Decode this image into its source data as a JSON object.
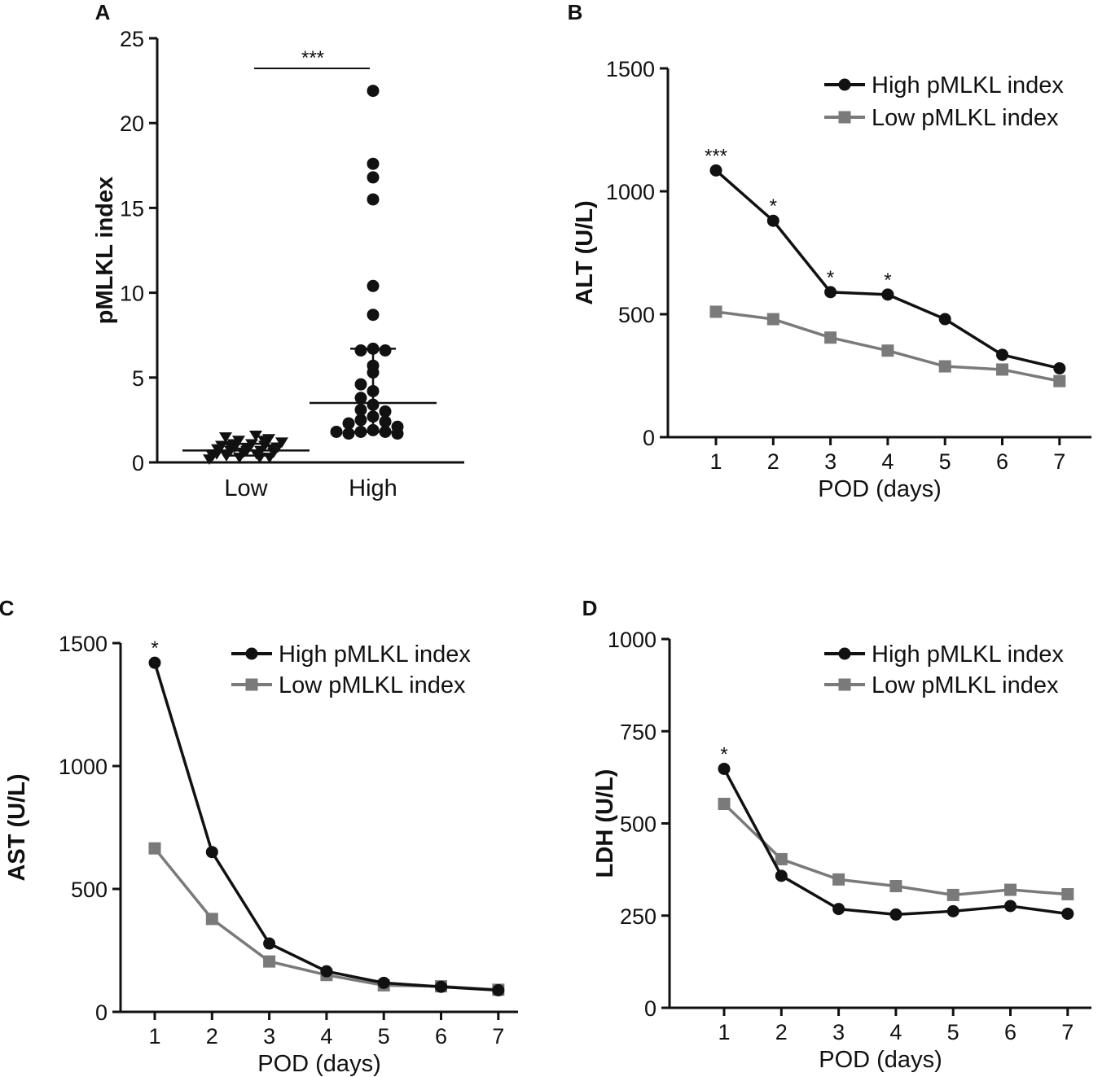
{
  "chart_data": [
    {
      "panel": "A",
      "type": "scatter",
      "ylabel": "pMLKL index",
      "xlabel": "",
      "categories": [
        "Low",
        "High"
      ],
      "ylim": [
        0,
        25
      ],
      "yticks": [
        0,
        5,
        10,
        15,
        20,
        25
      ],
      "significance": "***",
      "groups": [
        {
          "name": "Low",
          "marker": "triangle-down",
          "values": [
            0.2,
            0.3,
            0.3,
            0.4,
            0.5,
            0.5,
            0.6,
            0.6,
            0.7,
            0.7,
            0.8,
            0.8,
            0.9,
            0.9,
            1.0,
            1.0,
            1.1,
            1.2,
            1.3,
            1.4,
            1.5,
            1.6,
            0.4,
            0.6,
            0.8,
            1.0,
            0.3,
            0.5,
            0.7,
            0.9,
            1.1,
            1.3
          ],
          "median": 0.7,
          "iqr": [
            0.4,
            1.1
          ]
        },
        {
          "name": "High",
          "marker": "circle",
          "values": [
            21.9,
            17.6,
            16.8,
            15.5,
            10.4,
            8.7,
            6.7,
            6.6,
            6.6,
            5.7,
            5.3,
            4.6,
            4.2,
            3.8,
            3.4,
            3.1,
            3.0,
            2.7,
            2.5,
            2.4,
            2.3,
            2.1,
            1.9,
            1.8,
            1.8,
            1.7,
            1.7,
            1.8
          ],
          "median": 3.5,
          "iqr": [
            1.8,
            6.7
          ]
        }
      ]
    },
    {
      "panel": "B",
      "type": "line",
      "ylabel": "ALT (U/L)",
      "xlabel": "POD (days)",
      "x": [
        1,
        2,
        3,
        4,
        5,
        6,
        7
      ],
      "ylim": [
        0,
        1500
      ],
      "yticks": [
        0,
        500,
        1000,
        1500
      ],
      "series": [
        {
          "name": "High pMLKL index",
          "marker": "circle",
          "color": "#111111",
          "values": [
            1085,
            880,
            590,
            580,
            480,
            335,
            280
          ]
        },
        {
          "name": "Low pMLKL index",
          "marker": "square",
          "color": "#7a7a7a",
          "values": [
            510,
            480,
            405,
            352,
            288,
            275,
            228
          ]
        }
      ],
      "annotations": [
        {
          "x": 1,
          "text": "***"
        },
        {
          "x": 2,
          "text": "*"
        },
        {
          "x": 3,
          "text": "*"
        },
        {
          "x": 4,
          "text": "*"
        }
      ]
    },
    {
      "panel": "C",
      "type": "line",
      "ylabel": "AST (U/L)",
      "xlabel": "POD (days)",
      "x": [
        1,
        2,
        3,
        4,
        5,
        6,
        7
      ],
      "ylim": [
        0,
        1500
      ],
      "yticks": [
        0,
        500,
        1000,
        1500
      ],
      "series": [
        {
          "name": "High pMLKL index",
          "marker": "circle",
          "color": "#111111",
          "values": [
            1420,
            650,
            278,
            165,
            118,
            102,
            88
          ]
        },
        {
          "name": "Low pMLKL index",
          "marker": "square",
          "color": "#7a7a7a",
          "values": [
            665,
            378,
            205,
            150,
            108,
            104,
            90
          ]
        }
      ],
      "annotations": [
        {
          "x": 1,
          "text": "*"
        }
      ]
    },
    {
      "panel": "D",
      "type": "line",
      "ylabel": "LDH (U/L)",
      "xlabel": "POD (days)",
      "x": [
        1,
        2,
        3,
        4,
        5,
        6,
        7
      ],
      "ylim": [
        0,
        1000
      ],
      "yticks": [
        0,
        250,
        500,
        750,
        1000
      ],
      "series": [
        {
          "name": "High pMLKL index",
          "marker": "circle",
          "color": "#111111",
          "values": [
            648,
            358,
            268,
            253,
            262,
            276,
            255
          ]
        },
        {
          "name": "Low pMLKL index",
          "marker": "square",
          "color": "#7a7a7a",
          "values": [
            553,
            403,
            348,
            330,
            306,
            320,
            308
          ]
        }
      ],
      "annotations": [
        {
          "x": 1,
          "text": "*"
        }
      ]
    }
  ]
}
